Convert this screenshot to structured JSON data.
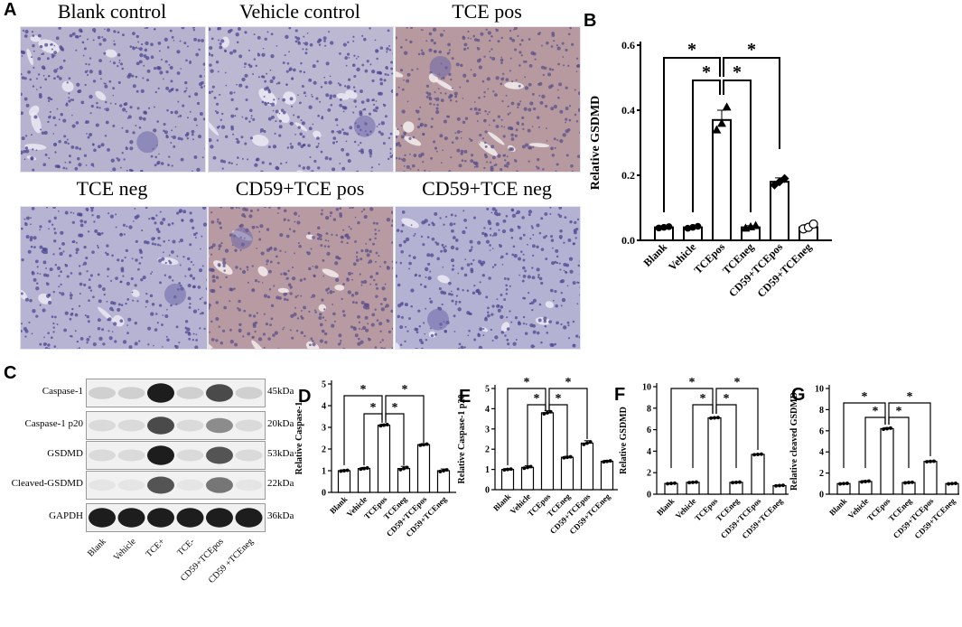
{
  "panel_letters": {
    "A": "A",
    "B": "B",
    "C": "C",
    "D": "D",
    "E": "E",
    "F": "F",
    "G": "G"
  },
  "micrographs": [
    {
      "label": "Blank control",
      "tint": "#b7b3cf"
    },
    {
      "label": "Vehicle control",
      "tint": "#bcb8d2"
    },
    {
      "label": "TCE pos",
      "tint": "#b79a9f"
    },
    {
      "label": "TCE neg",
      "tint": "#b6b4d2"
    },
    {
      "label": "CD59+TCE pos",
      "tint": "#b89ba2"
    },
    {
      "label": "CD59+TCE neg",
      "tint": "#b3b2d3"
    }
  ],
  "blot": {
    "rows": [
      {
        "label": "Caspase-1",
        "kda": "45kDa"
      },
      {
        "label": "Caspase-1 p20",
        "kda": "20kDa"
      },
      {
        "label": "GSDMD",
        "kda": "53kDa"
      },
      {
        "label": "Cleaved-GSDMD",
        "kda": "22kDa"
      },
      {
        "label": "GAPDH",
        "kda": "36kDa"
      }
    ],
    "lanes": [
      "Blank",
      "Vehicle",
      "TCE+",
      "TCE-",
      "CD59+TCEpos",
      "CD59 +TCEneg"
    ]
  },
  "chart_data": [
    {
      "id": "B",
      "type": "bar",
      "categories": [
        "Blank",
        "Vehicle",
        "TCEpos",
        "TCEneg",
        "CD59+TCEpos",
        "CD59+TCEneg"
      ],
      "values": [
        0.04,
        0.04,
        0.37,
        0.04,
        0.18,
        0.04
      ],
      "errors": [
        0.003,
        0.004,
        0.03,
        0.005,
        0.012,
        0.008
      ],
      "points": [
        [
          0.038,
          0.04,
          0.042
        ],
        [
          0.037,
          0.04,
          0.043
        ],
        [
          0.34,
          0.36,
          0.41
        ],
        [
          0.038,
          0.042,
          0.046
        ],
        [
          0.17,
          0.18,
          0.19
        ],
        [
          0.035,
          0.04,
          0.05
        ]
      ],
      "markers": [
        "circle",
        "circle",
        "triangle",
        "triangle",
        "diamond",
        "ocircle"
      ],
      "ylabel": "Relative GSDMD",
      "ylim": [
        0,
        0.6
      ],
      "yticks": [
        "0.0",
        "0.2",
        "0.4",
        "0.6"
      ],
      "sig": "*"
    },
    {
      "id": "D",
      "type": "bar",
      "categories": [
        "Blank",
        "Vehicle",
        "TCEpos",
        "TCEneg",
        "CD59+TCEpos",
        "CD59+TCEneg"
      ],
      "values": [
        1.0,
        1.1,
        3.1,
        1.1,
        2.2,
        1.0
      ],
      "errors": [
        0.04,
        0.05,
        0.05,
        0.1,
        0.05,
        0.08
      ],
      "ylabel": "Relative Caspase-1",
      "ylim": [
        0,
        5
      ],
      "yticks": [
        "0",
        "1",
        "2",
        "3",
        "4",
        "5"
      ],
      "sig": "*"
    },
    {
      "id": "E",
      "type": "bar",
      "categories": [
        "Blank",
        "Vehicle",
        "TCEpos",
        "TCEneg",
        "CD59+TCEpos",
        "CD59+TCEneg"
      ],
      "values": [
        1.0,
        1.1,
        3.8,
        1.6,
        2.3,
        1.4
      ],
      "errors": [
        0.04,
        0.08,
        0.1,
        0.05,
        0.12,
        0.05
      ],
      "ylabel": "Relative Caspase-1 p20",
      "ylim": [
        0,
        5
      ],
      "yticks": [
        "0",
        "1",
        "2",
        "3",
        "4",
        "5"
      ],
      "sig": "*"
    },
    {
      "id": "F",
      "type": "bar",
      "categories": [
        "Blank",
        "Vehicle",
        "TCEpos",
        "TCEneg",
        "CD59+TCEpos",
        "CD59+TCEneg"
      ],
      "values": [
        1.0,
        1.1,
        7.1,
        1.1,
        3.7,
        0.8
      ],
      "errors": [
        0.05,
        0.05,
        0.05,
        0.05,
        0.05,
        0.05
      ],
      "ylabel": "Relative GSDMD",
      "ylim": [
        0,
        10
      ],
      "yticks": [
        "0",
        "2",
        "4",
        "6",
        "8",
        "10"
      ],
      "sig": "*"
    },
    {
      "id": "G",
      "type": "bar",
      "categories": [
        "Blank",
        "Vehicle",
        "TCEpos",
        "TCEneg",
        "CD59+TCEpos",
        "CD59+TCEneg"
      ],
      "values": [
        1.0,
        1.2,
        6.2,
        1.1,
        3.1,
        1.0
      ],
      "errors": [
        0.05,
        0.08,
        0.1,
        0.06,
        0.05,
        0.05
      ],
      "ylabel": "Relative cleaved GSDMD",
      "ylim": [
        0,
        10
      ],
      "yticks": [
        "0",
        "2",
        "4",
        "6",
        "8",
        "10"
      ],
      "sig": "*"
    }
  ]
}
